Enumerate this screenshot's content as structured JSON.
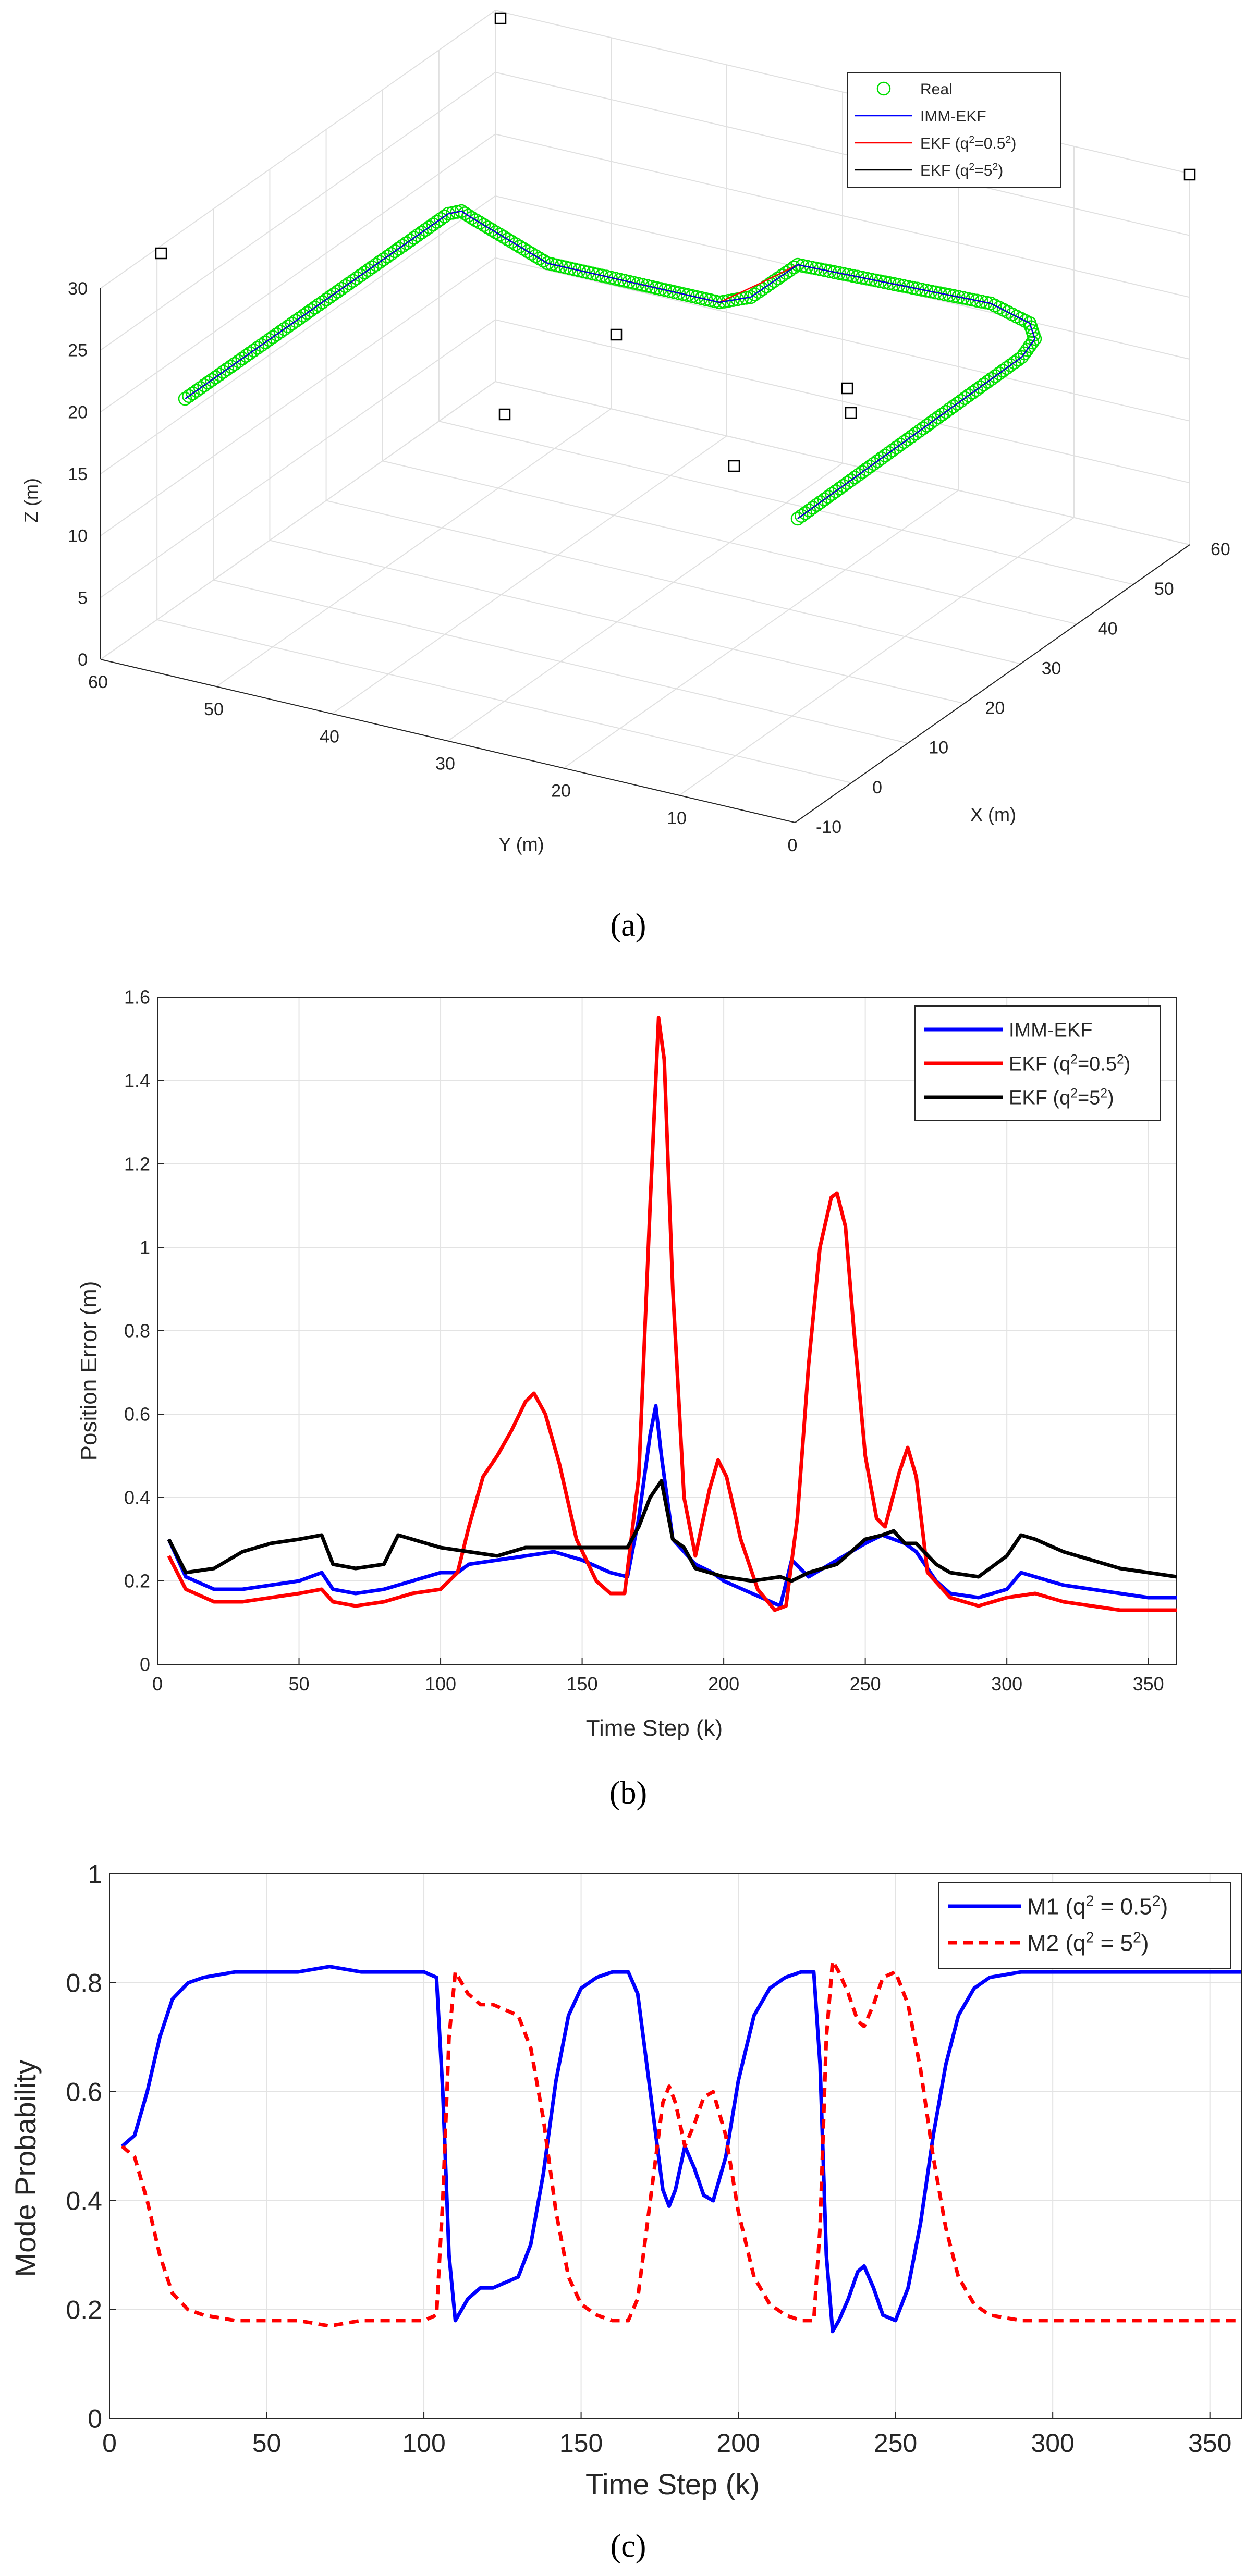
{
  "panel_a": {
    "caption": "(a)",
    "chart_data": {
      "type": "line3d",
      "xlabel": "X (m)",
      "ylabel": "Y (m)",
      "zlabel": "Z (m)",
      "xlim": [
        -10,
        60
      ],
      "ylim": [
        0,
        60
      ],
      "zlim": [
        0,
        30
      ],
      "xticks": [
        "-10",
        "0",
        "10",
        "20",
        "30",
        "40",
        "50",
        "60"
      ],
      "yticks": [
        "0",
        "10",
        "20",
        "30",
        "40",
        "50",
        "60"
      ],
      "zticks": [
        "0",
        "5",
        "10",
        "15",
        "20",
        "25",
        "30"
      ],
      "legend": [
        {
          "name": "Real",
          "color": "#00dd00",
          "style": "circle"
        },
        {
          "name": "IMM-EKF",
          "color": "#0000ff",
          "style": "line"
        },
        {
          "name": "EKF (q",
          "sup": "2",
          "suffix": "=0.5",
          "sup2": "2",
          "tail": ")",
          "color": "#ff0000",
          "style": "line"
        },
        {
          "name": "EKF (q",
          "sup": "2",
          "suffix": "=5",
          "sup2": "2",
          "tail": ")",
          "color": "#000000",
          "style": "line"
        }
      ]
    }
  },
  "panel_b": {
    "caption": "(b)",
    "chart_data": {
      "type": "line",
      "xlabel": "Time Step (k)",
      "ylabel": "Position Error (m)",
      "xlim": [
        0,
        360
      ],
      "ylim": [
        0,
        1.6
      ],
      "xticks": [
        0,
        50,
        100,
        150,
        200,
        250,
        300,
        350
      ],
      "yticks": [
        0,
        0.2,
        0.4,
        0.6,
        0.8,
        1,
        1.2,
        1.4,
        1.6
      ],
      "ytick_labels": [
        "0",
        "0.2",
        "0.4",
        "0.6",
        "0.8",
        "1",
        "1.2",
        "1.4",
        "1.6"
      ],
      "series": [
        {
          "name": "IMM-EKF",
          "label_sup": "",
          "color": "#0000ff",
          "x": [
            4,
            10,
            20,
            30,
            40,
            50,
            58,
            62,
            70,
            80,
            90,
            100,
            106,
            110,
            120,
            130,
            140,
            150,
            160,
            166,
            170,
            174,
            176,
            178,
            182,
            186,
            190,
            196,
            200,
            210,
            220,
            224,
            230,
            240,
            250,
            256,
            260,
            264,
            268,
            275,
            280,
            290,
            300,
            305,
            310,
            320,
            330,
            340,
            350,
            360
          ],
          "y": [
            0.3,
            0.21,
            0.18,
            0.18,
            0.19,
            0.2,
            0.22,
            0.18,
            0.17,
            0.18,
            0.2,
            0.22,
            0.22,
            0.24,
            0.25,
            0.26,
            0.27,
            0.25,
            0.22,
            0.21,
            0.35,
            0.55,
            0.62,
            0.5,
            0.3,
            0.27,
            0.24,
            0.22,
            0.2,
            0.17,
            0.14,
            0.25,
            0.21,
            0.25,
            0.29,
            0.31,
            0.3,
            0.29,
            0.27,
            0.2,
            0.17,
            0.16,
            0.18,
            0.22,
            0.21,
            0.19,
            0.18,
            0.17,
            0.16,
            0.16
          ]
        },
        {
          "name": "EKF (q",
          "label_sup": "2",
          "label_mid": "=0.5",
          "label_sup2": "2",
          "label_tail": ")",
          "color": "#ff0000",
          "x": [
            4,
            10,
            20,
            30,
            40,
            50,
            58,
            62,
            70,
            80,
            90,
            100,
            106,
            110,
            115,
            120,
            125,
            130,
            133,
            137,
            142,
            148,
            155,
            160,
            165,
            170,
            174,
            177,
            179,
            182,
            186,
            190,
            195,
            198,
            201,
            206,
            212,
            218,
            222,
            226,
            230,
            234,
            238,
            240,
            243,
            246,
            250,
            254,
            257,
            262,
            265,
            268,
            272,
            280,
            290,
            300,
            310,
            320,
            330,
            340,
            350,
            360
          ],
          "y": [
            0.26,
            0.18,
            0.15,
            0.15,
            0.16,
            0.17,
            0.18,
            0.15,
            0.14,
            0.15,
            0.17,
            0.18,
            0.22,
            0.33,
            0.45,
            0.5,
            0.56,
            0.63,
            0.65,
            0.6,
            0.48,
            0.3,
            0.2,
            0.17,
            0.17,
            0.45,
            1.1,
            1.55,
            1.45,
            0.9,
            0.4,
            0.26,
            0.42,
            0.49,
            0.45,
            0.3,
            0.18,
            0.13,
            0.14,
            0.35,
            0.72,
            1.0,
            1.12,
            1.13,
            1.05,
            0.8,
            0.5,
            0.35,
            0.33,
            0.46,
            0.52,
            0.45,
            0.22,
            0.16,
            0.14,
            0.16,
            0.17,
            0.15,
            0.14,
            0.13,
            0.13,
            0.13
          ]
        },
        {
          "name": "EKF (q",
          "label_sup": "2",
          "label_mid": "=5",
          "label_sup2": "2",
          "label_tail": ")",
          "color": "#000000",
          "x": [
            4,
            10,
            20,
            30,
            40,
            50,
            58,
            62,
            70,
            80,
            85,
            90,
            100,
            110,
            120,
            130,
            140,
            150,
            160,
            166,
            170,
            174,
            178,
            182,
            186,
            190,
            200,
            210,
            220,
            224,
            230,
            240,
            250,
            256,
            260,
            264,
            268,
            275,
            280,
            290,
            300,
            305,
            310,
            320,
            330,
            340,
            350,
            360
          ],
          "y": [
            0.3,
            0.22,
            0.23,
            0.27,
            0.29,
            0.3,
            0.31,
            0.24,
            0.23,
            0.24,
            0.31,
            0.3,
            0.28,
            0.27,
            0.26,
            0.28,
            0.28,
            0.28,
            0.28,
            0.28,
            0.33,
            0.4,
            0.44,
            0.3,
            0.28,
            0.23,
            0.21,
            0.2,
            0.21,
            0.2,
            0.22,
            0.24,
            0.3,
            0.31,
            0.32,
            0.29,
            0.29,
            0.24,
            0.22,
            0.21,
            0.26,
            0.31,
            0.3,
            0.27,
            0.25,
            0.23,
            0.22,
            0.21
          ]
        }
      ]
    }
  },
  "panel_c": {
    "caption": "(c)",
    "chart_data": {
      "type": "line",
      "xlabel": "Time Step (k)",
      "ylabel": "Mode Probability",
      "xlim": [
        0,
        360
      ],
      "ylim": [
        0,
        1
      ],
      "xticks": [
        0,
        50,
        100,
        150,
        200,
        250,
        300,
        350
      ],
      "yticks": [
        0,
        0.2,
        0.4,
        0.6,
        0.8,
        1
      ],
      "ytick_labels": [
        "0",
        "0.2",
        "0.4",
        "0.6",
        "0.8",
        "1"
      ],
      "series": [
        {
          "name": "M1 (q",
          "label_sup": "2",
          "label_mid": " = 0.5",
          "label_sup2": "2",
          "label_tail": ")",
          "color": "#0000ff",
          "dash": "none",
          "x": [
            4,
            8,
            12,
            16,
            20,
            25,
            30,
            40,
            50,
            60,
            70,
            80,
            90,
            100,
            104,
            106,
            108,
            110,
            114,
            118,
            122,
            126,
            130,
            134,
            138,
            142,
            146,
            150,
            155,
            160,
            165,
            168,
            172,
            176,
            178,
            180,
            183,
            186,
            189,
            192,
            196,
            200,
            205,
            210,
            215,
            220,
            224,
            226,
            228,
            230,
            232,
            235,
            238,
            240,
            243,
            246,
            250,
            254,
            258,
            262,
            266,
            270,
            275,
            280,
            290,
            300,
            310,
            320,
            330,
            340,
            350,
            360
          ],
          "y": [
            0.5,
            0.52,
            0.6,
            0.7,
            0.77,
            0.8,
            0.81,
            0.82,
            0.82,
            0.82,
            0.83,
            0.82,
            0.82,
            0.82,
            0.81,
            0.6,
            0.3,
            0.18,
            0.22,
            0.24,
            0.24,
            0.25,
            0.26,
            0.32,
            0.45,
            0.62,
            0.74,
            0.79,
            0.81,
            0.82,
            0.82,
            0.78,
            0.6,
            0.42,
            0.39,
            0.42,
            0.5,
            0.46,
            0.41,
            0.4,
            0.48,
            0.62,
            0.74,
            0.79,
            0.81,
            0.82,
            0.82,
            0.65,
            0.3,
            0.16,
            0.18,
            0.22,
            0.27,
            0.28,
            0.24,
            0.19,
            0.18,
            0.24,
            0.36,
            0.52,
            0.65,
            0.74,
            0.79,
            0.81,
            0.82,
            0.82,
            0.82,
            0.82,
            0.82,
            0.82,
            0.82,
            0.82
          ]
        },
        {
          "name": "M2 (q",
          "label_sup": "2",
          "label_mid": " = 5",
          "label_sup2": "2",
          "label_tail": ")",
          "color": "#ff0000",
          "dash": "18,12",
          "x": [
            4,
            8,
            12,
            16,
            20,
            25,
            30,
            40,
            50,
            60,
            70,
            80,
            90,
            100,
            104,
            106,
            108,
            110,
            114,
            118,
            122,
            126,
            130,
            134,
            138,
            142,
            146,
            150,
            155,
            160,
            165,
            168,
            172,
            176,
            178,
            180,
            183,
            186,
            189,
            192,
            196,
            200,
            205,
            210,
            215,
            220,
            224,
            226,
            228,
            230,
            232,
            235,
            238,
            240,
            243,
            246,
            250,
            254,
            258,
            262,
            266,
            270,
            275,
            280,
            290,
            300,
            310,
            320,
            330,
            340,
            350,
            360
          ],
          "y": [
            0.5,
            0.48,
            0.4,
            0.3,
            0.23,
            0.2,
            0.19,
            0.18,
            0.18,
            0.18,
            0.17,
            0.18,
            0.18,
            0.18,
            0.19,
            0.4,
            0.7,
            0.82,
            0.78,
            0.76,
            0.76,
            0.75,
            0.74,
            0.68,
            0.55,
            0.38,
            0.26,
            0.21,
            0.19,
            0.18,
            0.18,
            0.22,
            0.4,
            0.58,
            0.61,
            0.58,
            0.5,
            0.54,
            0.59,
            0.6,
            0.52,
            0.38,
            0.26,
            0.21,
            0.19,
            0.18,
            0.18,
            0.35,
            0.7,
            0.84,
            0.82,
            0.78,
            0.73,
            0.72,
            0.76,
            0.81,
            0.82,
            0.76,
            0.64,
            0.48,
            0.35,
            0.26,
            0.21,
            0.19,
            0.18,
            0.18,
            0.18,
            0.18,
            0.18,
            0.18,
            0.18,
            0.18
          ]
        }
      ]
    }
  }
}
